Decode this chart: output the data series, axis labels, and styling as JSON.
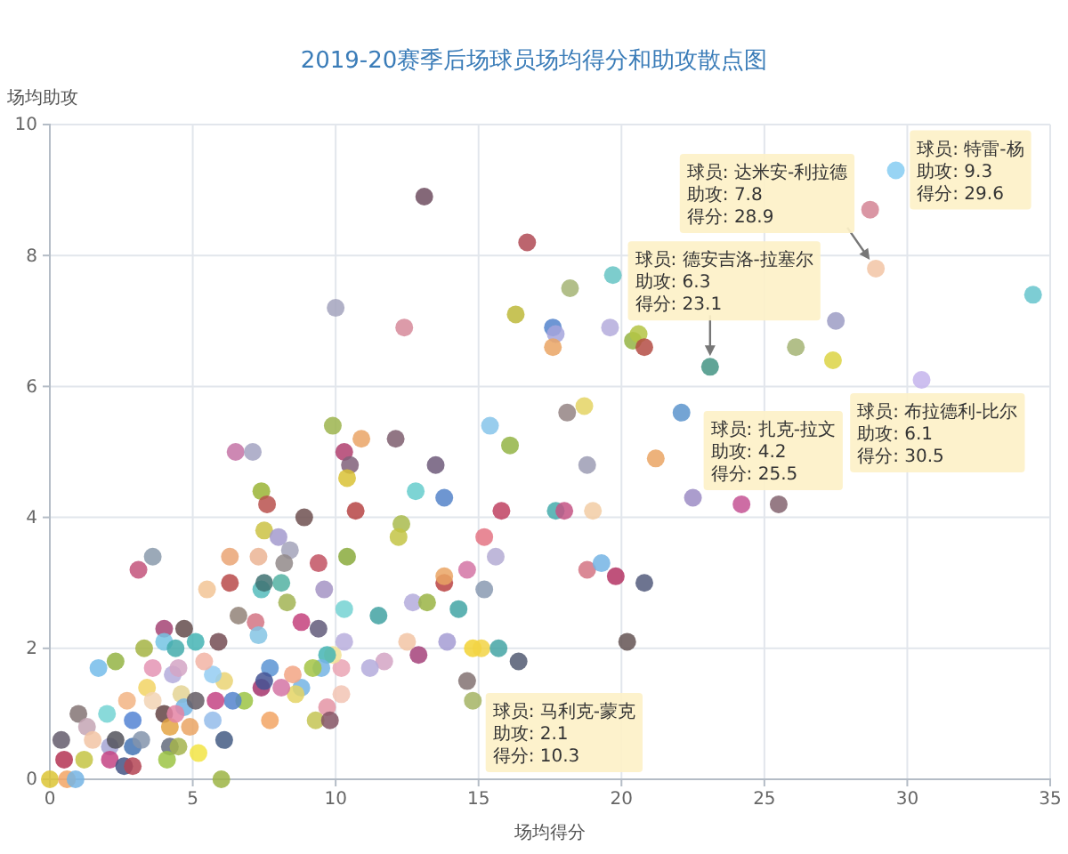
{
  "chart_data": {
    "type": "scatter",
    "title": "2019-20赛季后场球员场均得分和助攻散点图",
    "xlabel": "场均得分",
    "ylabel": "场均助攻",
    "xlim": [
      0,
      35
    ],
    "ylim": [
      0,
      10
    ],
    "xticks": [
      0,
      5,
      10,
      15,
      20,
      25,
      30,
      35
    ],
    "yticks": [
      0,
      2,
      4,
      6,
      8,
      10
    ],
    "grid": true,
    "marker": "circle",
    "x": [
      13.1,
      16.7,
      10.0,
      12.4,
      16.3,
      9.9,
      6.5,
      7.1,
      10.3,
      10.5,
      10.9,
      12.1,
      10.4,
      15.4,
      16.1,
      13.5,
      12.8,
      13.8,
      10.7,
      15.8,
      12.3,
      12.2,
      8.9,
      7.4,
      7.6,
      7.5,
      8.0,
      8.4,
      8.2,
      9.4,
      10.4,
      6.3,
      7.3,
      3.1,
      3.6,
      5.5,
      6.3,
      7.4,
      7.5,
      8.1,
      8.3,
      9.6,
      6.6,
      7.2,
      7.3,
      8.8,
      9.4,
      10.3,
      11.5,
      12.7,
      13.2,
      13.8,
      13.8,
      14.6,
      15.2,
      15.6,
      15.2,
      14.3,
      13.9,
      12.9,
      12.5,
      14.8,
      15.1,
      15.7,
      16.4,
      14.6,
      14.8,
      11.7,
      11.2,
      10.3,
      10.2,
      10.2,
      9.9,
      9.7,
      9.5,
      9.2,
      9.3,
      9.7,
      9.8,
      8.8,
      8.6,
      8.5,
      8.1,
      7.7,
      7.7,
      7.4,
      7.5,
      6.8,
      6.4,
      6.1,
      5.9,
      5.7,
      5.8,
      5.7,
      6.1,
      6.0,
      5.2,
      5.4,
      5.1,
      4.7,
      4.0,
      4.0,
      4.4,
      3.3,
      3.6,
      2.3,
      1.7,
      2.0,
      1.0,
      0.4,
      0.5,
      0.0,
      0.6,
      0.9,
      1.2,
      1.3,
      1.5,
      2.1,
      2.3,
      2.1,
      2.6,
      2.9,
      2.7,
      2.9,
      2.9,
      3.2,
      3.4,
      3.6,
      4.0,
      4.2,
      4.2,
      4.1,
      4.5,
      4.3,
      4.6,
      4.7,
      4.9,
      5.1,
      4.4,
      4.5,
      29.6,
      28.7,
      28.9,
      34.4,
      27.5,
      26.1,
      27.4,
      30.5,
      23.1,
      22.1,
      25.5,
      24.2,
      22.5,
      21.2,
      18.8,
      18.1,
      18.7,
      18.2,
      19.7,
      17.6,
      17.7,
      17.6,
      19.6,
      20.4,
      20.6,
      20.8,
      17.7,
      18.0,
      19.0,
      18.8,
      19.3,
      19.8,
      20.8,
      20.2
    ],
    "values": [
      8.9,
      8.2,
      7.2,
      6.9,
      7.1,
      5.4,
      5.0,
      5.0,
      5.0,
      4.8,
      5.2,
      5.2,
      4.6,
      5.4,
      5.1,
      4.8,
      4.4,
      4.3,
      4.1,
      4.1,
      3.9,
      3.7,
      4.0,
      4.4,
      4.2,
      3.8,
      3.7,
      3.5,
      3.3,
      3.3,
      3.4,
      3.4,
      3.4,
      3.2,
      3.4,
      2.9,
      3.0,
      2.9,
      3.0,
      3.0,
      2.7,
      2.9,
      2.5,
      2.4,
      2.2,
      2.4,
      2.3,
      2.6,
      2.5,
      2.7,
      2.7,
      3.0,
      3.1,
      3.2,
      2.9,
      3.4,
      3.7,
      2.6,
      2.1,
      1.9,
      2.1,
      2.0,
      2.0,
      2.0,
      1.8,
      1.5,
      1.2,
      1.8,
      1.7,
      2.1,
      1.7,
      1.3,
      1.9,
      1.9,
      1.7,
      1.7,
      0.9,
      1.1,
      0.9,
      1.4,
      1.3,
      1.6,
      1.4,
      0.9,
      1.7,
      1.4,
      1.5,
      1.2,
      1.2,
      1.5,
      2.1,
      1.6,
      1.2,
      0.9,
      0.6,
      0.0,
      0.4,
      1.8,
      2.1,
      2.3,
      2.3,
      2.1,
      2.0,
      2.0,
      1.7,
      1.8,
      1.7,
      1.0,
      1.0,
      0.6,
      0.3,
      0.0,
      0.0,
      0.0,
      0.3,
      0.8,
      0.6,
      0.5,
      0.6,
      0.3,
      0.2,
      0.2,
      1.2,
      0.9,
      0.5,
      0.6,
      1.4,
      1.2,
      1.0,
      0.8,
      0.5,
      0.3,
      0.5,
      1.6,
      1.3,
      1.1,
      0.8,
      1.2,
      1.0,
      1.7,
      9.3,
      8.7,
      7.8,
      7.4,
      7.0,
      6.6,
      6.4,
      6.1,
      6.3,
      5.6,
      4.2,
      4.2,
      4.3,
      4.9,
      4.8,
      5.6,
      5.7,
      7.5,
      7.7,
      6.9,
      6.8,
      6.6,
      6.9,
      6.7,
      6.8,
      6.6,
      4.1,
      4.1,
      4.1,
      3.2,
      3.3,
      3.1,
      3.0,
      2.1
    ],
    "colors": [
      "#6e4e60",
      "#b04a55",
      "#a3a3bd",
      "#d68a9a",
      "#bdb83a",
      "#9cb44e",
      "#c473a6",
      "#a3a3c2",
      "#b0406f",
      "#80607a",
      "#eaa466",
      "#7e5e6e",
      "#d9c235",
      "#86c4ea",
      "#93b445",
      "#6e5a7a",
      "#66cccc",
      "#5584c9",
      "#b64444",
      "#c04262",
      "#a9bb4d",
      "#c3c445",
      "#6e5050",
      "#9ab435",
      "#b8514e",
      "#cbc244",
      "#a39ace",
      "#a3a3ba",
      "#928a8a",
      "#c25263",
      "#8aaa3c",
      "#eaa474",
      "#ebb494",
      "#c3547b",
      "#8a9aab",
      "#f2c495",
      "#b84a4a",
      "#55bcbc",
      "#3f7272",
      "#52b2a2",
      "#a2b454",
      "#a494c4",
      "#928278",
      "#d47484",
      "#84c4e4",
      "#c4427c",
      "#625a7a",
      "#74d2d2",
      "#42a2a2",
      "#b4acdc",
      "#9ab444",
      "#ba4242",
      "#eaa464",
      "#d474a4",
      "#8a9ab2",
      "#b4acd4",
      "#e47484",
      "#42a4a4",
      "#a49cd4",
      "#a4427a",
      "#f2c4a4",
      "#f2d234",
      "#f2d444",
      "#44a4a4",
      "#525a72",
      "#827272",
      "#a4b464",
      "#d4a4c4",
      "#b4acdc",
      "#b8aedd",
      "#eaa4b4",
      "#f2c4b4",
      "#f2e294",
      "#44b4b4",
      "#74b4e4",
      "#a4c444",
      "#c4c454",
      "#e494a4",
      "#845464",
      "#74b4e4",
      "#e4d464",
      "#f2a484",
      "#d474a4",
      "#f2a464",
      "#5c94d4",
      "#a4346c",
      "#445494",
      "#9cc444",
      "#5484cc",
      "#ead474",
      "#744c54",
      "#94ccf2",
      "#c44484",
      "#94bcea",
      "#445c84",
      "#9cb444",
      "#f2e444",
      "#f2b4a4",
      "#44b4b4",
      "#644c4c",
      "#a44474",
      "#74c4e4",
      "#44acac",
      "#a4b444",
      "#e494b4",
      "#94b444",
      "#74bcea",
      "#74d4d4",
      "#847474",
      "#645c6c",
      "#b43454",
      "#dcc434",
      "#f2a464",
      "#74b4e4",
      "#c4c444",
      "#c4a4b4",
      "#f2c4a4",
      "#a4a4d4",
      "#54545c",
      "#c44484",
      "#445484",
      "#b44454",
      "#f2b484",
      "#5484d4",
      "#4474b4",
      "#8494ac",
      "#f2d464",
      "#f2d4b4",
      "#644444",
      "#e4a444",
      "#646c7c",
      "#9cc444",
      "#a4b44c",
      "#b4acdc",
      "#e4d494",
      "#74b4e4",
      "#eaa464",
      "#645c64",
      "#e484a4",
      "#d4a4c4",
      "#86ccf2",
      "#d48494",
      "#f2c4a4",
      "#66c4cc",
      "#9c9cc4",
      "#a4b474",
      "#dcd444",
      "#c4b4ec",
      "#449484",
      "#5c94cc",
      "#846470",
      "#c45494",
      "#9c8cc4",
      "#eaa464",
      "#9c9cb4",
      "#948484",
      "#e4d464",
      "#a4b474",
      "#66c4c4",
      "#5484cc",
      "#a4a4dc",
      "#eaa464",
      "#b4acdc",
      "#94b444",
      "#b4c444",
      "#b44c44",
      "#44acac",
      "#c45484",
      "#f2cca4",
      "#d47484",
      "#74b4e4",
      "#b43464",
      "#545c7c",
      "#645454"
    ],
    "annotations": [
      {
        "text": "球员: 特雷-杨助攻: 9.3得分: 29.6",
        "x": 29.6,
        "y": 9.3
      },
      {
        "text": "球员: 达米安-利拉德助攻: 7.8得分: 28.9",
        "x": 28.9,
        "y": 7.8
      },
      {
        "text": "球员: 德安吉洛-拉塞尔助攻: 6.3得分: 23.1",
        "x": 23.1,
        "y": 6.3
      },
      {
        "text": "球员: 布拉德利-比尔助攻: 6.1得分: 30.5",
        "x": 30.5,
        "y": 6.1
      },
      {
        "text": "球员: 扎克-拉文助攻: 4.2得分: 25.5",
        "x": 25.5,
        "y": 4.2
      },
      "球员: 马利克-蒙克助攻: 2.1得分: 10.3"
    ]
  }
}
